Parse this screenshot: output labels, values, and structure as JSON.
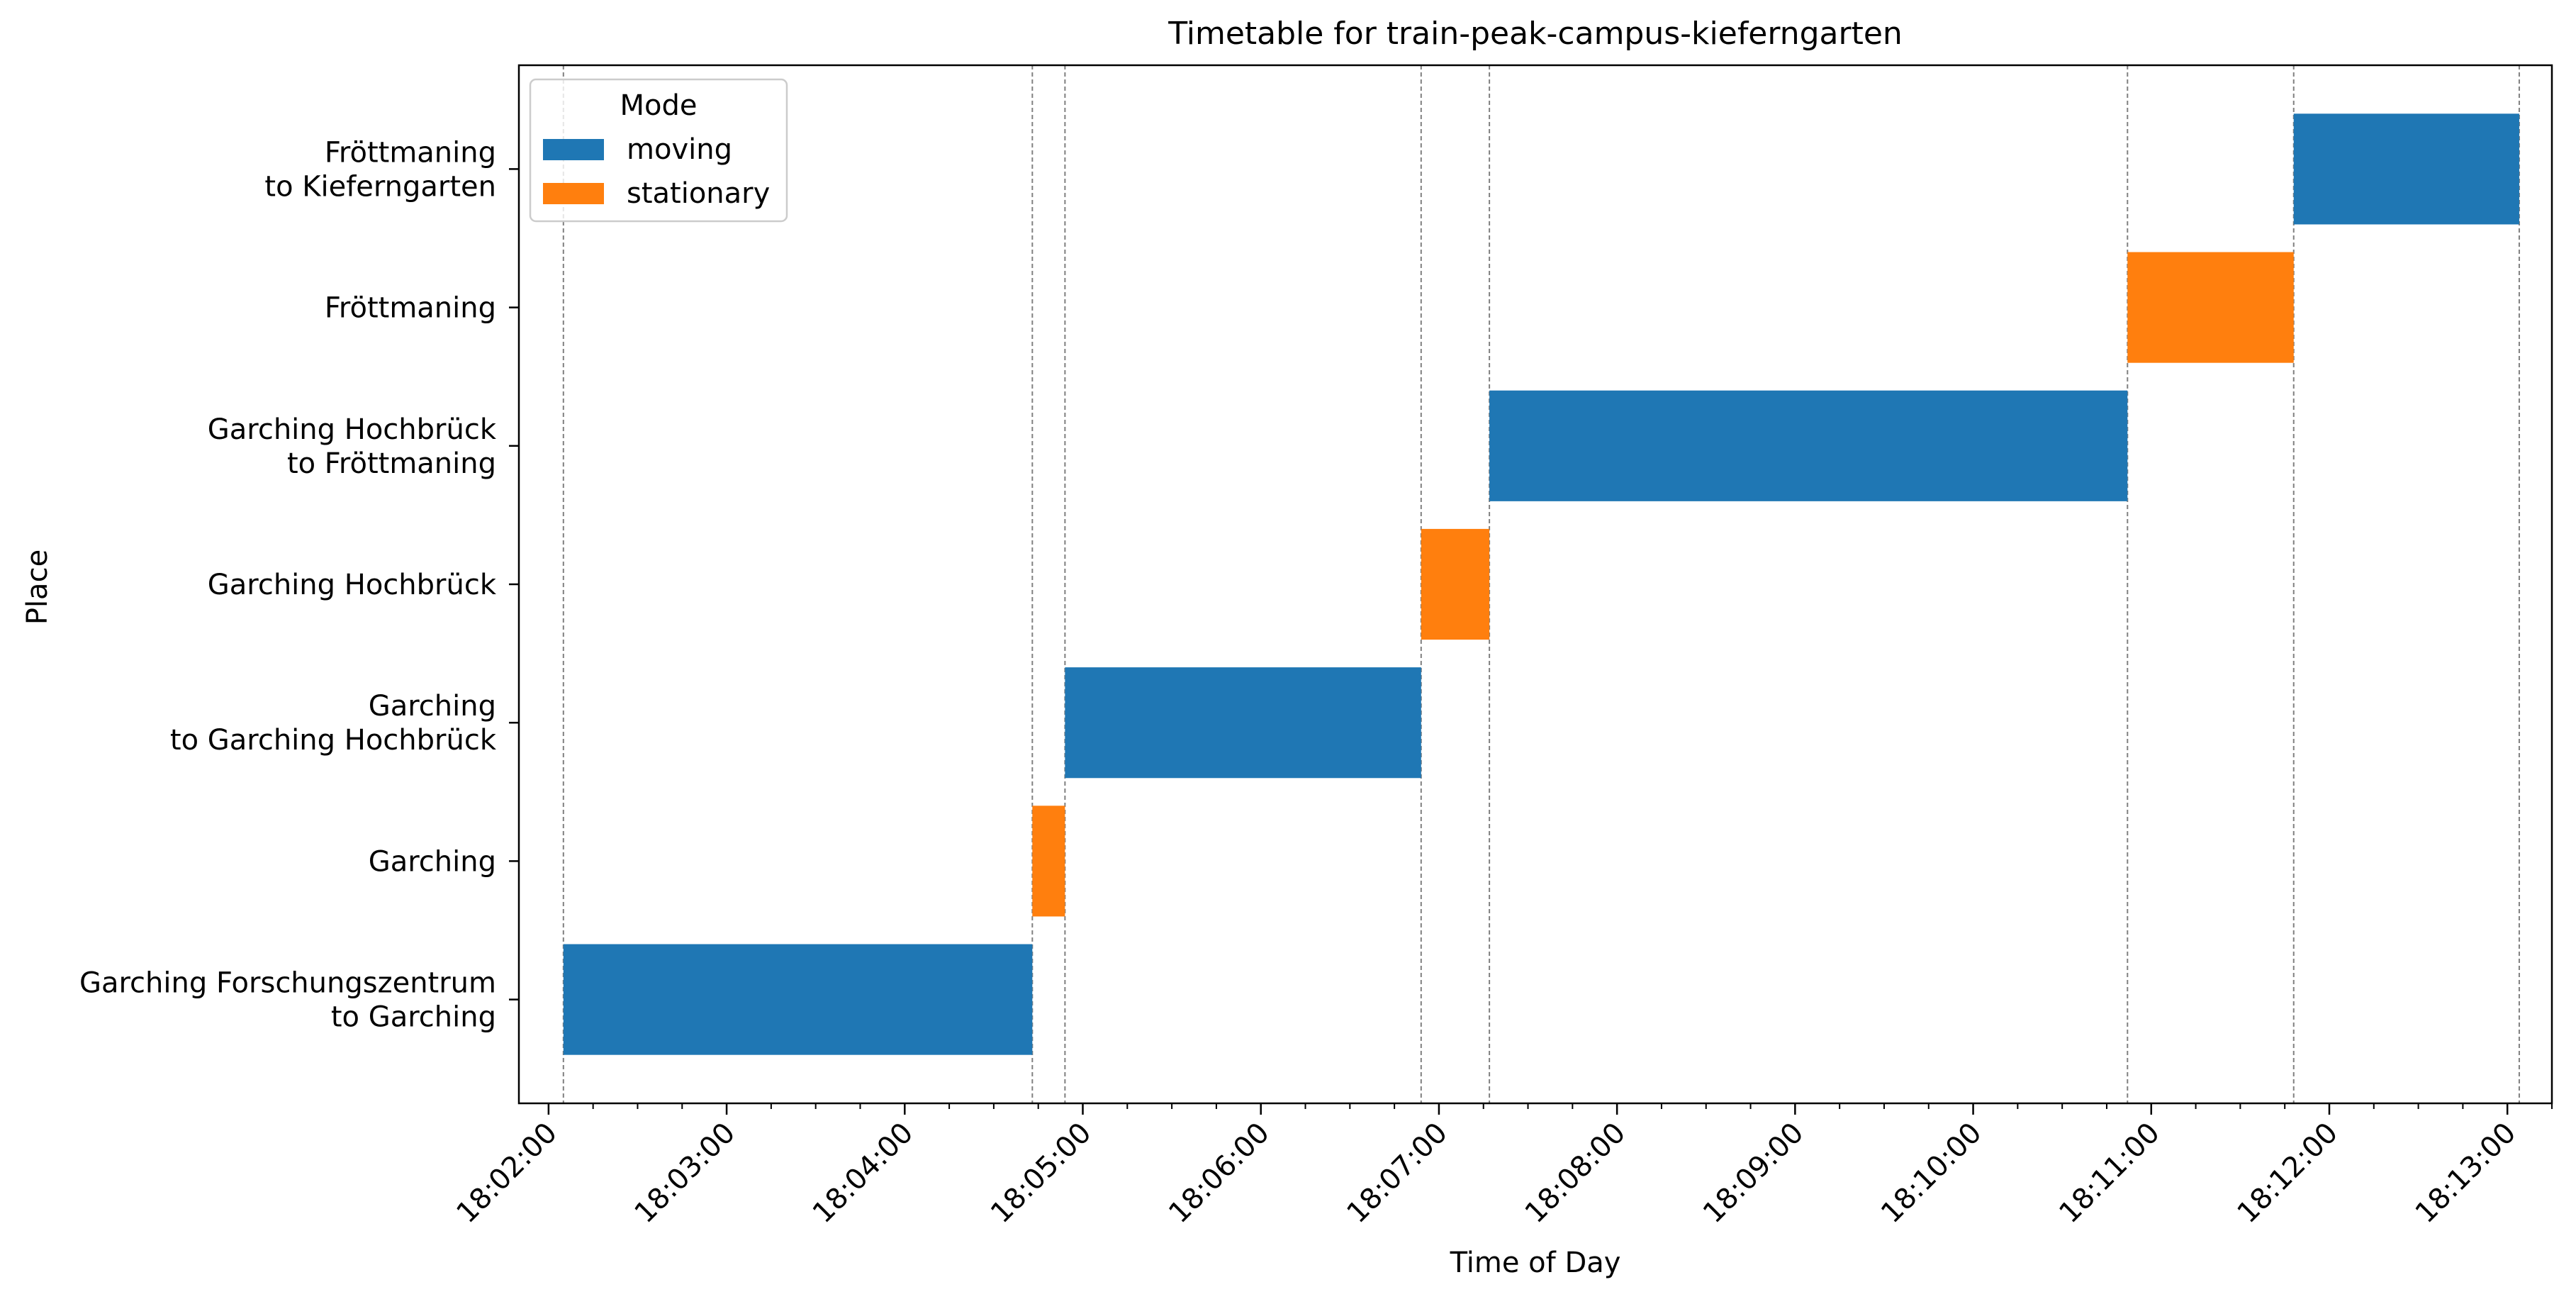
{
  "chart_data": {
    "type": "gantt",
    "title": "Timetable for train-peak-campus-kieferngarten",
    "xlabel": "Time of Day",
    "ylabel": "Place",
    "x_range": [
      "18:01:50",
      "18:13:15"
    ],
    "x_ticks": [
      "18:02:00",
      "18:03:00",
      "18:04:00",
      "18:05:00",
      "18:06:00",
      "18:07:00",
      "18:08:00",
      "18:09:00",
      "18:10:00",
      "18:11:00",
      "18:12:00",
      "18:13:00"
    ],
    "categories": [
      [
        "Garching Forschungszentrum",
        "to Garching"
      ],
      [
        "Garching"
      ],
      [
        "Garching",
        "to Garching Hochbrück"
      ],
      [
        "Garching Hochbrück"
      ],
      [
        "Garching Hochbrück",
        "to Fröttmaning"
      ],
      [
        "Fröttmaning"
      ],
      [
        "Fröttmaning",
        "to Kieferngarten"
      ]
    ],
    "legend": {
      "title": "Mode",
      "position": "upper-left",
      "entries": [
        {
          "label": "moving",
          "color": "#1f77b4"
        },
        {
          "label": "stationary",
          "color": "#ff7f0e"
        }
      ]
    },
    "segments": [
      {
        "category": 0,
        "mode": "moving",
        "start": "18:02:05",
        "end": "18:04:43"
      },
      {
        "category": 1,
        "mode": "stationary",
        "start": "18:04:43",
        "end": "18:04:54"
      },
      {
        "category": 2,
        "mode": "moving",
        "start": "18:04:54",
        "end": "18:06:54"
      },
      {
        "category": 3,
        "mode": "stationary",
        "start": "18:06:54",
        "end": "18:07:17"
      },
      {
        "category": 4,
        "mode": "moving",
        "start": "18:07:17",
        "end": "18:10:52"
      },
      {
        "category": 5,
        "mode": "stationary",
        "start": "18:10:52",
        "end": "18:11:48"
      },
      {
        "category": 6,
        "mode": "moving",
        "start": "18:11:48",
        "end": "18:13:04"
      }
    ],
    "boundary_lines": [
      "18:02:05",
      "18:04:43",
      "18:04:54",
      "18:06:54",
      "18:07:17",
      "18:10:52",
      "18:11:48",
      "18:13:04"
    ],
    "grid": false
  }
}
